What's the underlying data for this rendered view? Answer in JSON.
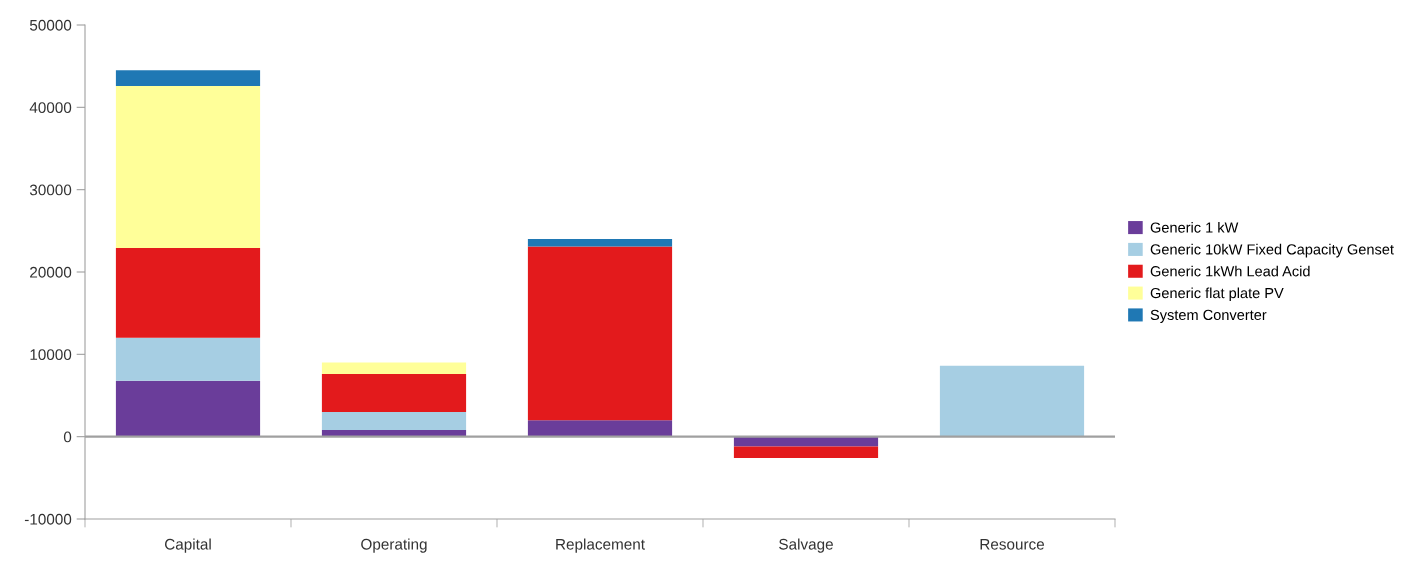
{
  "chart_data": {
    "type": "bar",
    "stacked": true,
    "categories": [
      "Capital",
      "Operating",
      "Replacement",
      "Salvage",
      "Resource"
    ],
    "series": [
      {
        "name": "Generic 1 kW",
        "color": "#6a3d9a",
        "values": [
          6800,
          800,
          2000,
          -1200,
          0
        ]
      },
      {
        "name": "Generic 10kW Fixed Capacity Genset",
        "color": "#a6cee3",
        "values": [
          5200,
          2200,
          0,
          0,
          8600
        ]
      },
      {
        "name": "Generic 1kWh Lead Acid",
        "color": "#e31a1c",
        "values": [
          10900,
          4600,
          21100,
          -1400,
          0
        ]
      },
      {
        "name": "Generic flat plate PV",
        "color": "#ffff99",
        "values": [
          19700,
          1400,
          0,
          0,
          0
        ]
      },
      {
        "name": "System Converter",
        "color": "#1f78b4",
        "values": [
          1900,
          0,
          900,
          0,
          0
        ]
      }
    ],
    "ylim": [
      -10000,
      50000
    ],
    "yticks": [
      -10000,
      0,
      10000,
      20000,
      30000,
      40000,
      50000
    ],
    "ref_lines": [
      {
        "axis": "y",
        "value": 0,
        "color": "#a0a0a0"
      }
    ],
    "grid": false,
    "legend": "right"
  }
}
